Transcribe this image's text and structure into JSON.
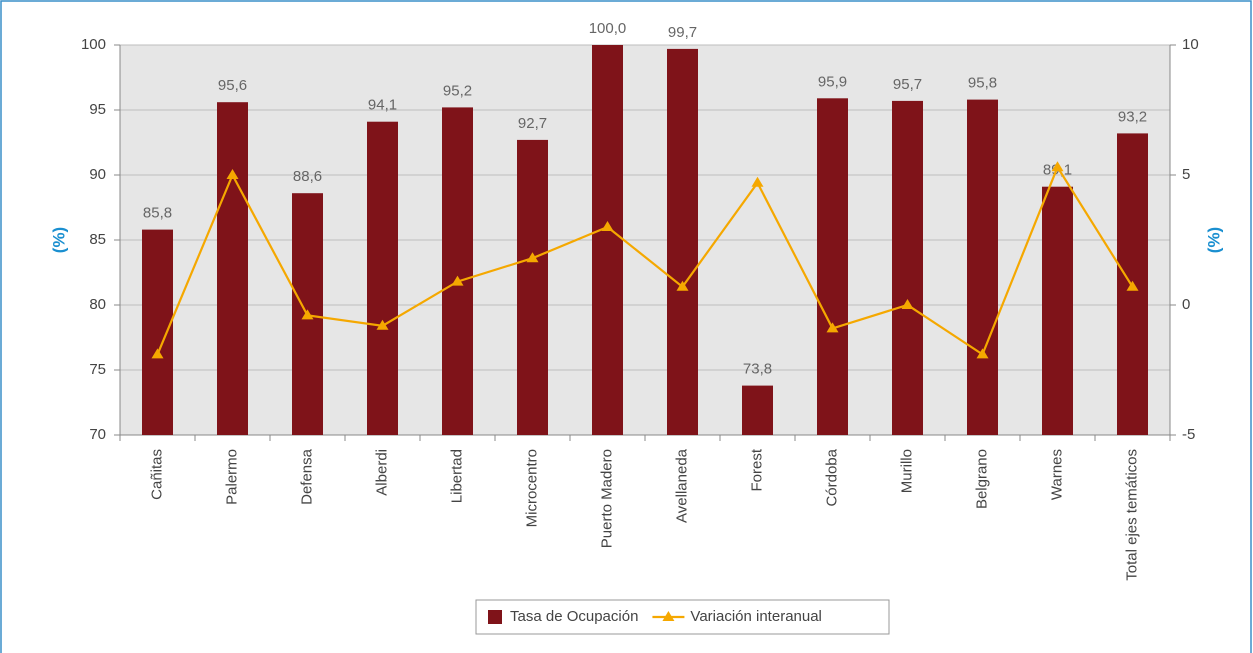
{
  "chart_data": {
    "type": "bar",
    "categories": [
      "Cañitas",
      "Palermo",
      "Defensa",
      "Alberdi",
      "Libertad",
      "Microcentro",
      "Puerto Madero",
      "Avellaneda",
      "Forest",
      "Córdoba",
      "Murillo",
      "Belgrano",
      "Warnes",
      "Total ejes temáticos"
    ],
    "series": [
      {
        "name": "Tasa de Ocupación",
        "color": "#7f1319",
        "type": "bar",
        "values": [
          85.8,
          95.6,
          88.6,
          94.1,
          95.2,
          92.7,
          100.0,
          99.7,
          73.8,
          95.9,
          95.7,
          95.8,
          89.1,
          93.2
        ],
        "value_labels": [
          "85,8",
          "95,6",
          "88,6",
          "94,1",
          "95,2",
          "92,7",
          "100,0",
          "99,7",
          "73,8",
          "95,9",
          "95,7",
          "95,8",
          "89,1",
          "93,2"
        ]
      },
      {
        "name": "Variación interanual",
        "color": "#f5a800",
        "type": "line",
        "axis": "y2",
        "values": [
          -1.9,
          5.0,
          -0.4,
          -0.8,
          0.9,
          1.8,
          3.0,
          0.7,
          4.7,
          -0.9,
          0.0,
          -1.9,
          5.3,
          0.7
        ]
      }
    ],
    "ylabel": "(%)",
    "y2label": "(%)",
    "ylim": [
      70,
      100
    ],
    "yticks": [
      70,
      75,
      80,
      85,
      90,
      95,
      100
    ],
    "y2lim": [
      -5,
      10
    ],
    "y2ticks": [
      -5,
      0,
      5,
      10
    ],
    "grid": true,
    "legend": "bottom"
  }
}
